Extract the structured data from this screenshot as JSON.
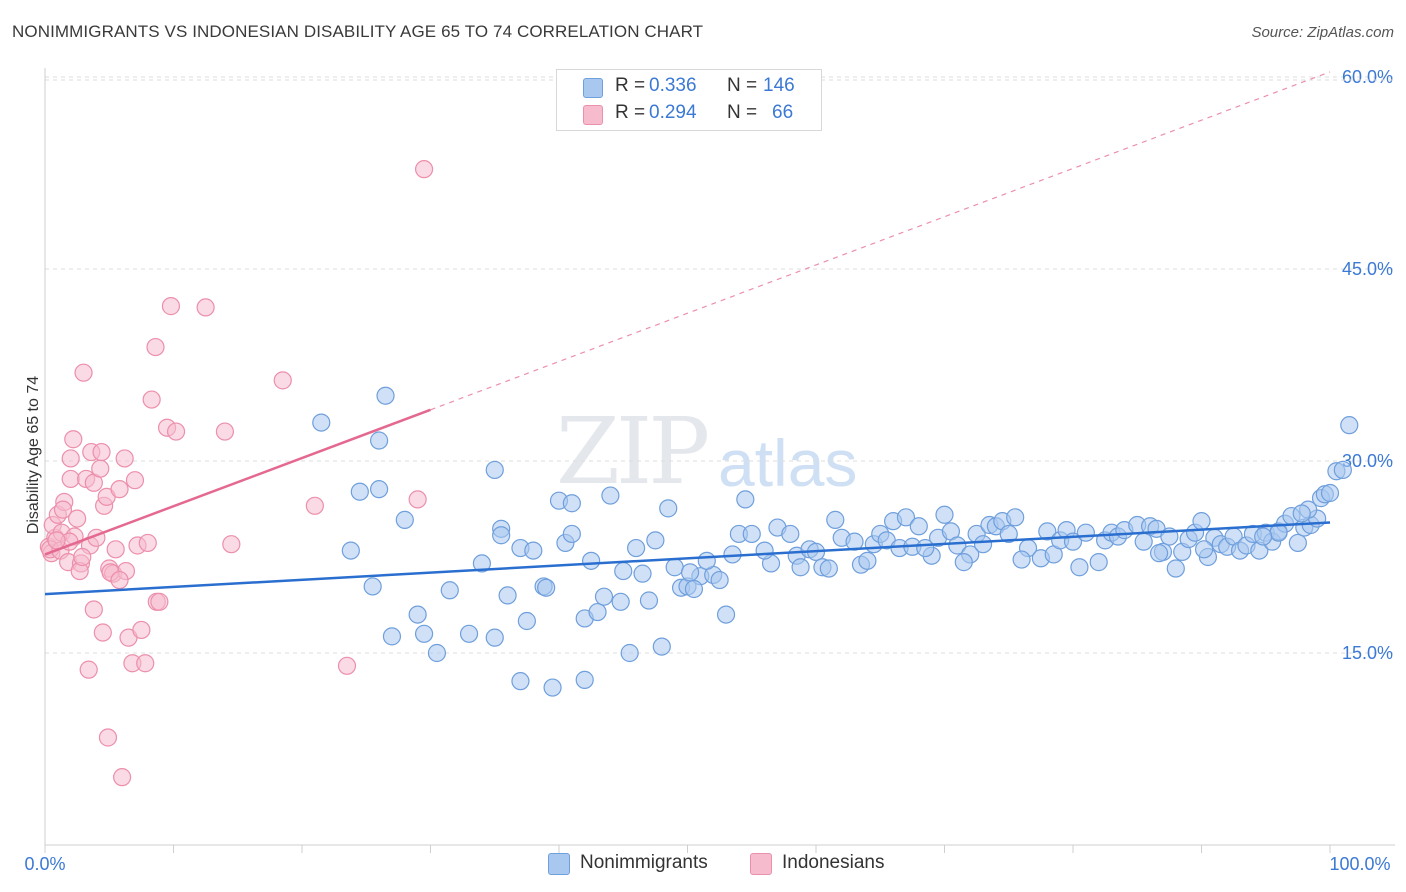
{
  "title": "NONIMMIGRANTS VS INDONESIAN DISABILITY AGE 65 TO 74 CORRELATION CHART",
  "source": "Source: ZipAtlas.com",
  "watermark": {
    "zip": "ZIP",
    "atlas": "atlas"
  },
  "colors": {
    "blue_fill": "#a9c8f0",
    "blue_stroke": "#6f9fdc",
    "blue_line": "#2a6fd0",
    "pink_fill": "#f6bccd",
    "pink_stroke": "#ec8fab",
    "pink_line": "#e4688f",
    "tick_label": "#3b79d4",
    "grid": "#dcdcdc"
  },
  "legend": {
    "rows": [
      {
        "r_label": "R =",
        "r_value": "0.336",
        "n_label": "N =",
        "n_value": "146"
      },
      {
        "r_label": "R =",
        "r_value": "0.294",
        "n_label": "N =",
        "n_value": "66"
      }
    ]
  },
  "bottom_legend": [
    "Nonimmigrants",
    "Indonesians"
  ],
  "chart_data": {
    "type": "scatter",
    "title": "NONIMMIGRANTS VS INDONESIAN DISABILITY AGE 65 TO 74 CORRELATION CHART",
    "xlabel": "",
    "ylabel": "Disability Age 65 to 74",
    "xlim": [
      0,
      100
    ],
    "ylim": [
      0,
      64
    ],
    "x_tick_labels": [
      "0.0%",
      "100.0%"
    ],
    "y_ticks": [
      15,
      30,
      45,
      60
    ],
    "y_tick_labels": [
      "15.0%",
      "30.0%",
      "45.0%",
      "60.0%"
    ],
    "grid": true,
    "legend_position": "top-center",
    "series": [
      {
        "name": "Nonimmigrants",
        "r": 0.336,
        "n": 146,
        "trend": {
          "x": [
            0,
            100
          ],
          "y": [
            19.6,
            25.2
          ]
        },
        "points": [
          [
            21.5,
            33.0
          ],
          [
            26.5,
            35.1
          ],
          [
            26.0,
            31.6
          ],
          [
            24.5,
            27.6
          ],
          [
            26.0,
            27.8
          ],
          [
            28.0,
            25.4
          ],
          [
            23.8,
            23.0
          ],
          [
            25.5,
            20.2
          ],
          [
            27.0,
            16.3
          ],
          [
            29.0,
            18.0
          ],
          [
            29.5,
            16.5
          ],
          [
            30.5,
            15.0
          ],
          [
            31.5,
            19.9
          ],
          [
            33.0,
            16.5
          ],
          [
            35.0,
            16.2
          ],
          [
            34.0,
            22.0
          ],
          [
            35.5,
            24.7
          ],
          [
            35.5,
            24.2
          ],
          [
            35.0,
            29.3
          ],
          [
            36.0,
            19.5
          ],
          [
            37.0,
            23.2
          ],
          [
            38.0,
            23.0
          ],
          [
            37.5,
            17.5
          ],
          [
            37.0,
            12.8
          ],
          [
            38.8,
            20.2
          ],
          [
            39.0,
            20.1
          ],
          [
            40.0,
            26.9
          ],
          [
            40.5,
            23.6
          ],
          [
            41.0,
            24.3
          ],
          [
            41.0,
            26.7
          ],
          [
            39.5,
            12.3
          ],
          [
            42.0,
            12.9
          ],
          [
            42.0,
            17.7
          ],
          [
            43.0,
            18.2
          ],
          [
            42.5,
            22.2
          ],
          [
            43.5,
            19.4
          ],
          [
            44.0,
            27.3
          ],
          [
            45.0,
            21.4
          ],
          [
            45.5,
            15.0
          ],
          [
            46.5,
            21.2
          ],
          [
            47.0,
            19.1
          ],
          [
            47.5,
            23.8
          ],
          [
            48.0,
            15.5
          ],
          [
            48.5,
            26.3
          ],
          [
            49.0,
            21.7
          ],
          [
            49.5,
            20.1
          ],
          [
            50.0,
            20.2
          ],
          [
            51.0,
            21.0
          ],
          [
            52.0,
            21.1
          ],
          [
            50.5,
            20.0
          ],
          [
            52.5,
            20.7
          ],
          [
            53.0,
            18.0
          ],
          [
            53.5,
            22.7
          ],
          [
            54.0,
            24.3
          ],
          [
            54.5,
            27.0
          ],
          [
            55.0,
            24.3
          ],
          [
            56.5,
            22.0
          ],
          [
            56.0,
            23.0
          ],
          [
            57.0,
            24.8
          ],
          [
            58.0,
            24.3
          ],
          [
            58.5,
            22.6
          ],
          [
            59.5,
            23.1
          ],
          [
            60.0,
            22.9
          ],
          [
            60.5,
            21.7
          ],
          [
            61.0,
            21.6
          ],
          [
            61.5,
            25.4
          ],
          [
            62.0,
            24.0
          ],
          [
            63.5,
            21.9
          ],
          [
            64.0,
            22.2
          ],
          [
            64.5,
            23.5
          ],
          [
            65.0,
            24.3
          ],
          [
            65.5,
            23.8
          ],
          [
            66.0,
            25.3
          ],
          [
            66.5,
            23.2
          ],
          [
            67.0,
            25.6
          ],
          [
            67.5,
            23.3
          ],
          [
            68.0,
            24.9
          ],
          [
            69.0,
            22.6
          ],
          [
            69.5,
            24.0
          ],
          [
            70.0,
            25.8
          ],
          [
            70.5,
            24.5
          ],
          [
            71.0,
            23.4
          ],
          [
            72.0,
            22.7
          ],
          [
            72.5,
            24.3
          ],
          [
            73.0,
            23.5
          ],
          [
            73.5,
            25.0
          ],
          [
            74.0,
            24.9
          ],
          [
            74.5,
            25.3
          ],
          [
            75.0,
            24.3
          ],
          [
            75.5,
            25.6
          ],
          [
            76.5,
            23.2
          ],
          [
            77.5,
            22.4
          ],
          [
            78.0,
            24.5
          ],
          [
            78.5,
            22.7
          ],
          [
            79.0,
            23.8
          ],
          [
            79.5,
            24.6
          ],
          [
            80.0,
            23.7
          ],
          [
            81.0,
            24.4
          ],
          [
            82.0,
            22.1
          ],
          [
            82.5,
            23.8
          ],
          [
            83.0,
            24.4
          ],
          [
            83.5,
            24.1
          ],
          [
            84.0,
            24.6
          ],
          [
            85.0,
            25.0
          ],
          [
            85.5,
            23.7
          ],
          [
            86.0,
            24.9
          ],
          [
            86.5,
            24.7
          ],
          [
            87.0,
            22.9
          ],
          [
            87.5,
            24.1
          ],
          [
            88.0,
            21.6
          ],
          [
            88.5,
            22.9
          ],
          [
            89.0,
            23.9
          ],
          [
            89.5,
            24.4
          ],
          [
            90.0,
            25.3
          ],
          [
            90.5,
            22.5
          ],
          [
            91.0,
            24.0
          ],
          [
            91.5,
            23.5
          ],
          [
            92.0,
            23.3
          ],
          [
            92.5,
            24.1
          ],
          [
            93.0,
            23.0
          ],
          [
            93.5,
            23.4
          ],
          [
            94.0,
            24.3
          ],
          [
            94.5,
            23.0
          ],
          [
            95.0,
            24.4
          ],
          [
            95.5,
            23.7
          ],
          [
            96.0,
            24.5
          ],
          [
            96.5,
            25.1
          ],
          [
            97.0,
            25.7
          ],
          [
            97.5,
            23.6
          ],
          [
            98.0,
            24.8
          ],
          [
            98.5,
            25.0
          ],
          [
            99.0,
            25.5
          ],
          [
            98.3,
            26.2
          ],
          [
            99.3,
            27.1
          ],
          [
            99.6,
            27.4
          ],
          [
            100.0,
            27.5
          ],
          [
            100.5,
            29.2
          ],
          [
            101.0,
            29.3
          ],
          [
            101.5,
            32.8
          ],
          [
            96.0,
            24.4
          ],
          [
            97.8,
            25.9
          ],
          [
            94.8,
            24.1
          ],
          [
            90.2,
            23.1
          ],
          [
            86.7,
            22.8
          ],
          [
            80.5,
            21.7
          ],
          [
            76.0,
            22.3
          ],
          [
            71.5,
            22.1
          ],
          [
            68.5,
            23.2
          ],
          [
            63.0,
            23.7
          ],
          [
            58.8,
            21.7
          ],
          [
            51.5,
            22.2
          ],
          [
            50.2,
            21.3
          ],
          [
            46.0,
            23.2
          ],
          [
            44.8,
            19.0
          ]
        ]
      },
      {
        "name": "Indonesians",
        "r": 0.294,
        "n": 66,
        "trend": {
          "x": [
            0,
            30
          ],
          "y": [
            22.7,
            34.0
          ]
        },
        "trend_extended": {
          "x": [
            30,
            100
          ],
          "y": [
            34.0,
            60.4
          ]
        },
        "points": [
          [
            0.3,
            23.3
          ],
          [
            0.5,
            22.8
          ],
          [
            0.8,
            24.0
          ],
          [
            0.6,
            25.0
          ],
          [
            0.4,
            23.1
          ],
          [
            1.0,
            25.8
          ],
          [
            1.3,
            24.4
          ],
          [
            1.5,
            26.8
          ],
          [
            1.2,
            23.0
          ],
          [
            1.8,
            22.1
          ],
          [
            1.4,
            26.2
          ],
          [
            2.0,
            28.6
          ],
          [
            2.2,
            31.7
          ],
          [
            2.0,
            30.2
          ],
          [
            2.5,
            25.5
          ],
          [
            2.3,
            24.1
          ],
          [
            2.8,
            22.0
          ],
          [
            2.7,
            21.4
          ],
          [
            3.0,
            36.9
          ],
          [
            3.2,
            28.6
          ],
          [
            3.5,
            23.4
          ],
          [
            3.6,
            30.7
          ],
          [
            3.8,
            28.3
          ],
          [
            4.0,
            24.0
          ],
          [
            4.3,
            29.4
          ],
          [
            4.4,
            30.7
          ],
          [
            4.6,
            26.5
          ],
          [
            4.8,
            27.2
          ],
          [
            5.0,
            21.6
          ],
          [
            5.3,
            21.2
          ],
          [
            5.5,
            23.1
          ],
          [
            5.8,
            27.8
          ],
          [
            6.2,
            30.2
          ],
          [
            6.3,
            21.4
          ],
          [
            6.5,
            16.2
          ],
          [
            6.8,
            14.2
          ],
          [
            7.0,
            28.5
          ],
          [
            7.2,
            23.4
          ],
          [
            7.5,
            16.8
          ],
          [
            7.8,
            14.2
          ],
          [
            8.0,
            23.6
          ],
          [
            8.3,
            34.8
          ],
          [
            8.6,
            38.9
          ],
          [
            8.7,
            19.0
          ],
          [
            8.9,
            19.0
          ],
          [
            9.5,
            32.6
          ],
          [
            9.8,
            42.1
          ],
          [
            10.2,
            32.3
          ],
          [
            12.5,
            42.0
          ],
          [
            14.0,
            32.3
          ],
          [
            14.5,
            23.5
          ],
          [
            18.5,
            36.3
          ],
          [
            21.0,
            26.5
          ],
          [
            23.5,
            14.0
          ],
          [
            29.0,
            27.0
          ],
          [
            29.5,
            52.8
          ],
          [
            4.5,
            16.6
          ],
          [
            3.8,
            18.4
          ],
          [
            5.1,
            21.3
          ],
          [
            4.9,
            8.4
          ],
          [
            6.0,
            5.3
          ],
          [
            5.8,
            20.7
          ],
          [
            3.4,
            13.7
          ],
          [
            2.9,
            22.5
          ],
          [
            1.9,
            23.7
          ],
          [
            0.9,
            23.8
          ]
        ]
      }
    ]
  }
}
